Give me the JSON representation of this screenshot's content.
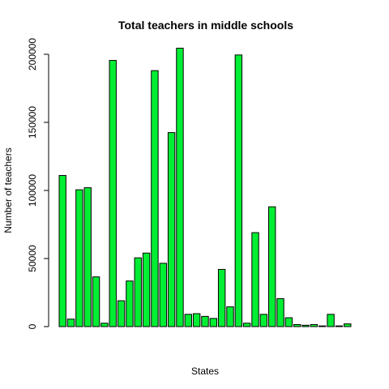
{
  "chart_data": {
    "type": "bar",
    "title": "Total teachers in middle schools",
    "xlabel": "States",
    "ylabel": "Number of teachers",
    "ylim": [
      0,
      210000
    ],
    "yticks": [
      0,
      50000,
      100000,
      150000,
      200000
    ],
    "ytick_labels": [
      "0",
      "50000",
      "100000",
      "150000",
      "200000"
    ],
    "grid": false,
    "bar_color": "#00ee33",
    "border_color": "#000000",
    "values": [
      111000,
      5500,
      100500,
      102000,
      36500,
      2500,
      195500,
      19000,
      33500,
      50500,
      54000,
      188000,
      46500,
      142500,
      204500,
      9000,
      9500,
      7500,
      6000,
      42000,
      14500,
      199500,
      2500,
      69000,
      9000,
      88000,
      20500,
      6500,
      1500,
      1000,
      1500,
      500,
      9000,
      500,
      2000
    ]
  }
}
